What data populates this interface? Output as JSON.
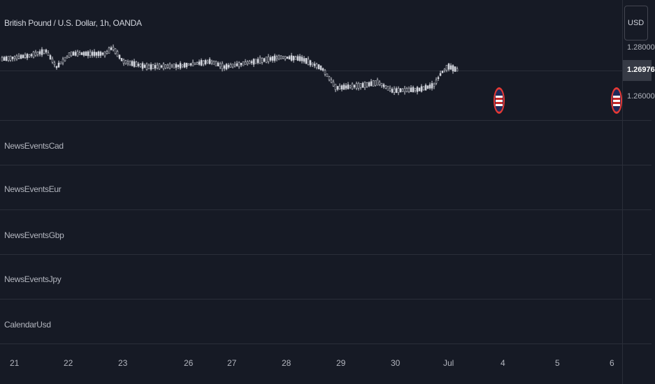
{
  "header": {
    "symbol_title": "British Pound / U.S. Dollar, 1h, OANDA"
  },
  "price_axis": {
    "currency": "USD",
    "ticks": [
      "1.28000",
      "1.26000"
    ],
    "last_price": "1.26976"
  },
  "panes": [
    {
      "label": "NewsEventsCad"
    },
    {
      "label": "NewsEventsEur"
    },
    {
      "label": "NewsEventsGbp"
    },
    {
      "label": "NewsEventsJpy"
    },
    {
      "label": "CalendarUsd"
    }
  ],
  "time_axis": {
    "ticks": [
      "21",
      "22",
      "23",
      "26",
      "27",
      "28",
      "29",
      "30",
      "Jul",
      "4",
      "5",
      "6"
    ]
  },
  "events": [
    {
      "icon": "us-flag-event-icon"
    },
    {
      "icon": "us-flag-event-icon"
    }
  ],
  "colors": {
    "background": "#161a25",
    "grid": "#2a2e39",
    "candle": "#d1d4dc",
    "event_ring": "#e53935"
  }
}
